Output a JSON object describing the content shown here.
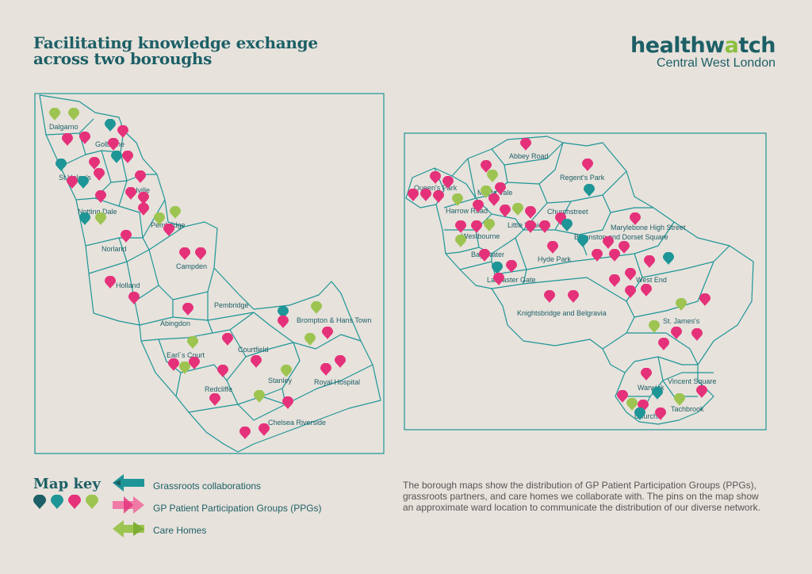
{
  "title_line1": "Facilitating knowledge exchange",
  "title_line2": "across two boroughs",
  "logo": {
    "word_pre": "healthw",
    "word_accent": "a",
    "word_post": "tch",
    "sub": "Central West London"
  },
  "colors": {
    "dark_teal": "#1d5f66",
    "teal": "#1e9597",
    "pink": "#e5317a",
    "green": "#9dc450",
    "background": "#e7e2dc"
  },
  "map_key": {
    "title": "Map key",
    "items": [
      {
        "label": "Grassroots collaborations",
        "color": "#1e9597",
        "icon": "teal-arrows-icon"
      },
      {
        "label": "GP Patient Participation Groups (PPGs)",
        "color": "#e5317a",
        "icon": "pink-arrows-icon"
      },
      {
        "label": "Care Homes",
        "color": "#9dc450",
        "icon": "green-arrows-icon"
      }
    ]
  },
  "description": "The borough maps show the distribution of GP Patient Participation Groups (PPGs), grassroots partners, and care homes we collaborate with. The pins on the map show an approximate ward location to communicate the distribution of our diverse network.",
  "left_map_wards": [
    "Dalgarno",
    "Golborne",
    "St Helen's",
    "Colville",
    "Notting Dale",
    "Pembridge",
    "Norland",
    "Campden",
    "Holland",
    "Pembridge",
    "Abingdon",
    "Brompton & Hans Town",
    "Earl´s Court",
    "Courtfield",
    "Stanley",
    "Redcliffe",
    "Royal Hospital",
    "Chelsea Riverside"
  ],
  "right_map_wards": [
    "Abbey Road",
    "Regent's Park",
    "Queen's Park",
    "Maida Vale",
    "Harrow Road",
    "Churchstreet",
    "Little Venice",
    "Westbourne",
    "Bryanston and Dorset Square",
    "Marylebone High Street",
    "Hyde Park",
    "Bayswater",
    "Lancaster Gate",
    "West End",
    "Knightsbridge and Belgravia",
    "St. James's",
    "Vincent Square",
    "Warwick",
    "Tachbrook",
    "Churchill"
  ]
}
